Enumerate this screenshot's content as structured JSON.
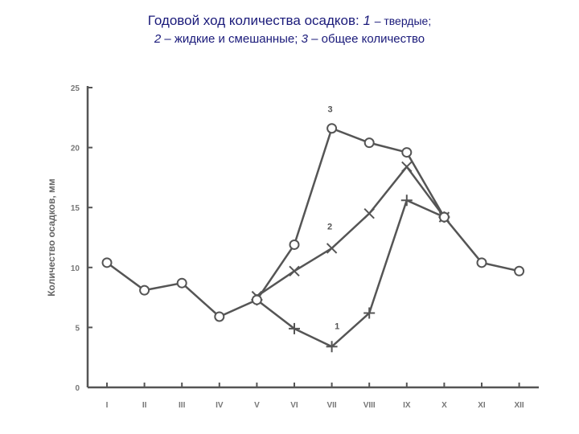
{
  "title": {
    "main": "Годовой ход количества осадков:",
    "s1_num": "1",
    "s1_text": "– твердые;",
    "s2_num": "2",
    "s2_text": "– жидкие и смешанные;",
    "s3_num": "3",
    "s3_text": "– общее количество"
  },
  "chart_data": {
    "type": "line",
    "categories": [
      "I",
      "II",
      "III",
      "IV",
      "V",
      "VI",
      "VII",
      "VIII",
      "IX",
      "X",
      "XI",
      "XII"
    ],
    "ylabel": "Количество осадков, мм",
    "xlabel": "",
    "ylim": [
      0,
      25
    ],
    "yticks": [
      0,
      5,
      10,
      15,
      20,
      25
    ],
    "grid": false,
    "series": [
      {
        "name": "1",
        "marker": "plus",
        "x": [
          "V",
          "VI",
          "VII",
          "VIII",
          "IX",
          "X"
        ],
        "values": [
          7.3,
          4.9,
          3.4,
          6.2,
          15.6,
          14.2
        ]
      },
      {
        "name": "2",
        "marker": "x",
        "x": [
          "V",
          "VI",
          "VII",
          "VIII",
          "IX",
          "X"
        ],
        "values": [
          7.6,
          9.7,
          11.6,
          14.5,
          18.4,
          14.2
        ]
      },
      {
        "name": "3",
        "marker": "circle",
        "x": [
          "I",
          "II",
          "III",
          "IV",
          "V",
          "VI",
          "VII",
          "VIII",
          "IX",
          "X",
          "XI",
          "XII"
        ],
        "values": [
          10.4,
          8.1,
          8.7,
          5.9,
          7.3,
          11.9,
          21.6,
          20.4,
          19.6,
          14.2,
          10.4,
          9.7
        ]
      }
    ],
    "colors": {
      "line": "#555555",
      "title": "#1a1a7a"
    }
  }
}
